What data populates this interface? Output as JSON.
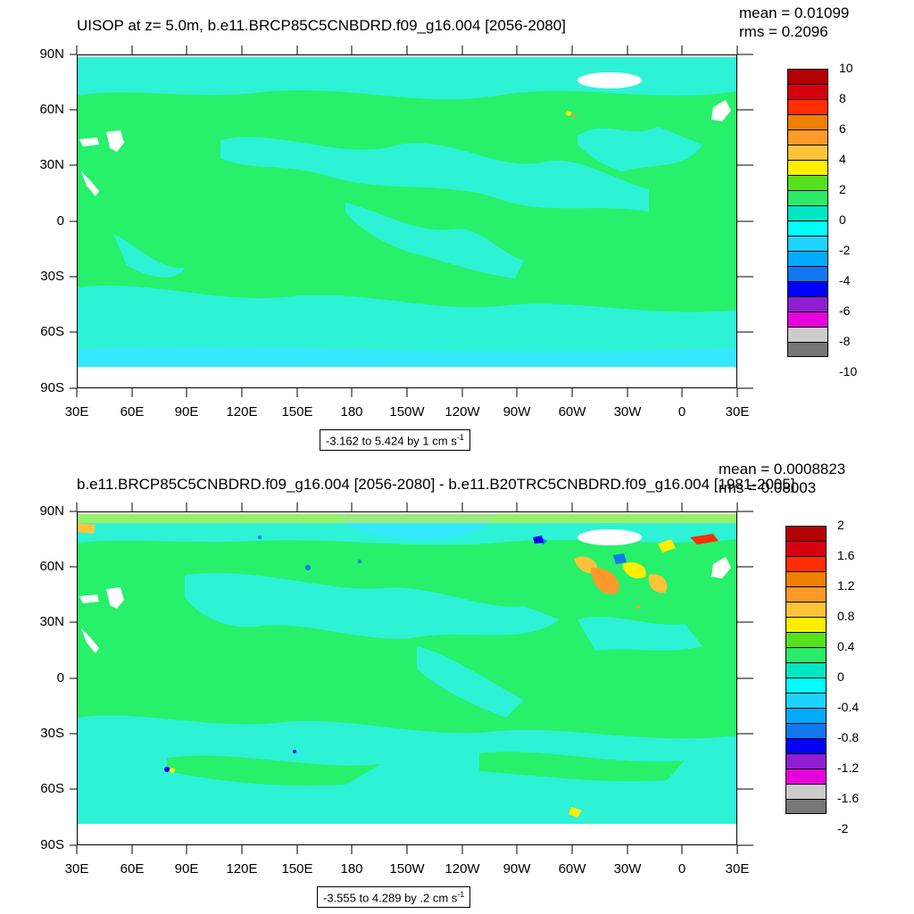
{
  "panels": [
    {
      "title": "UISOP at z=   5.0m, b.e11.BRCP85C5CNBDRD.f09_g16.004 [2056-2080]",
      "mean": "mean = 0.01099",
      "rms": "rms = 0.2096",
      "range_label": "-3.162 to 5.424 by 1 cm s",
      "range_sup": "-1",
      "colorbar_labels": [
        "10",
        "8",
        "6",
        "4",
        "2",
        "0",
        "-2",
        "-4",
        "-6",
        "-8",
        "-10"
      ]
    },
    {
      "title": "b.e11.BRCP85C5CNBDRD.f09_g16.004 [2056-2080] - b.e11.B20TRC5CNBDRD.f09_g16.004 [1981-2005]",
      "mean": "mean = 0.0008823",
      "rms": "rms = 0.08003",
      "range_label": "-3.555 to 4.289 by .2 cm s",
      "range_sup": "-1",
      "colorbar_labels": [
        "2",
        "1.6",
        "1.2",
        "0.8",
        "0.4",
        "0",
        "-0.4",
        "-0.8",
        "-1.2",
        "-1.6",
        "-2"
      ]
    }
  ],
  "lat_labels": [
    "90N",
    "60N",
    "30N",
    "0",
    "30S",
    "60S",
    "90S"
  ],
  "lon_labels": [
    "30E",
    "60E",
    "90E",
    "120E",
    "150E",
    "180",
    "150W",
    "120W",
    "90W",
    "60W",
    "30W",
    "0",
    "30E"
  ],
  "colors": {
    "colorbar": [
      "#b30000",
      "#d7000f",
      "#ff2d00",
      "#ef7f00",
      "#ff9a2a",
      "#ffc33a",
      "#ffee00",
      "#55e21d",
      "#2bea6a",
      "#00e8c3",
      "#00ffff",
      "#1ed3ff",
      "#00aaff",
      "#1177ee",
      "#0000ff",
      "#8f1ed1",
      "#e800dc",
      "#cccccc",
      "#777777"
    ],
    "ocean_base": "#27f06b",
    "ocean_neg": "#2ef2d6",
    "ocean_neg2": "#33e8ff"
  }
}
